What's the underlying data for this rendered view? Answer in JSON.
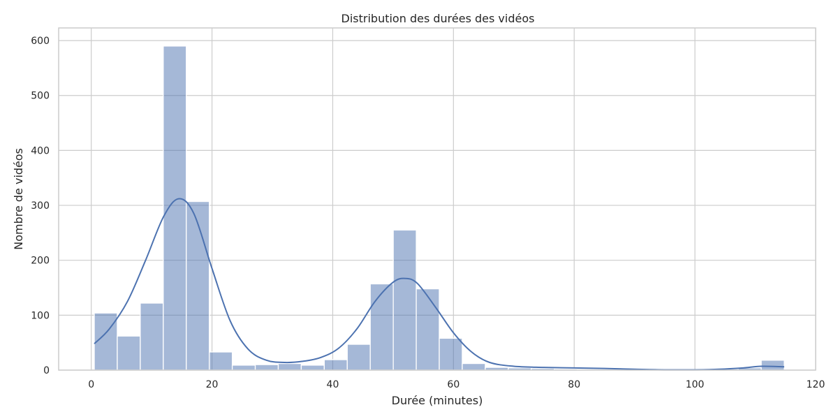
{
  "chart_data": {
    "type": "bar",
    "title": "Distribution des durées des vidéos",
    "xlabel": "Durée (minutes)",
    "ylabel": "Nombre de vidéos",
    "xlim": [
      -5.4,
      120
    ],
    "ylim": [
      0,
      623
    ],
    "xticks": [
      0,
      20,
      40,
      60,
      80,
      100,
      120
    ],
    "yticks": [
      0,
      100,
      200,
      300,
      400,
      500,
      600
    ],
    "grid": true,
    "colors": {
      "bar": "#4c72b0",
      "line": "#4c72b0",
      "grid": "#cccccc",
      "text": "#262626"
    },
    "bins": {
      "edges": [
        0.5,
        4.31,
        8.12,
        11.93,
        15.74,
        19.55,
        23.36,
        27.17,
        30.98,
        34.79,
        38.6,
        42.41,
        46.22,
        50.03,
        53.84,
        57.65,
        61.46,
        65.27,
        69.08,
        72.89,
        76.7,
        80.51,
        84.32,
        88.13,
        91.94,
        95.75,
        99.56,
        103.37,
        107.18,
        110.99,
        114.8
      ],
      "counts": [
        104,
        62,
        122,
        590,
        307,
        33,
        9,
        10,
        12,
        9,
        19,
        47,
        157,
        255,
        148,
        58,
        12,
        5,
        4,
        3,
        2,
        1,
        1,
        1,
        1,
        1,
        1,
        2,
        4,
        18
      ]
    },
    "kde": {
      "x": [
        0.5,
        3,
        6,
        9,
        12,
        14.5,
        17,
        20,
        23,
        26,
        29,
        32,
        35,
        38,
        41,
        44,
        47,
        50,
        52,
        54,
        57,
        60,
        63,
        66,
        70,
        75,
        80,
        85,
        90,
        95,
        100,
        104,
        108,
        111,
        114.8
      ],
      "y": [
        48,
        75,
        125,
        200,
        280,
        312,
        285,
        185,
        90,
        38,
        18,
        14,
        16,
        23,
        40,
        75,
        125,
        160,
        167,
        158,
        115,
        68,
        33,
        14,
        7,
        5,
        4,
        3,
        1.5,
        0.5,
        0.5,
        1.5,
        4,
        7,
        6
      ]
    }
  }
}
